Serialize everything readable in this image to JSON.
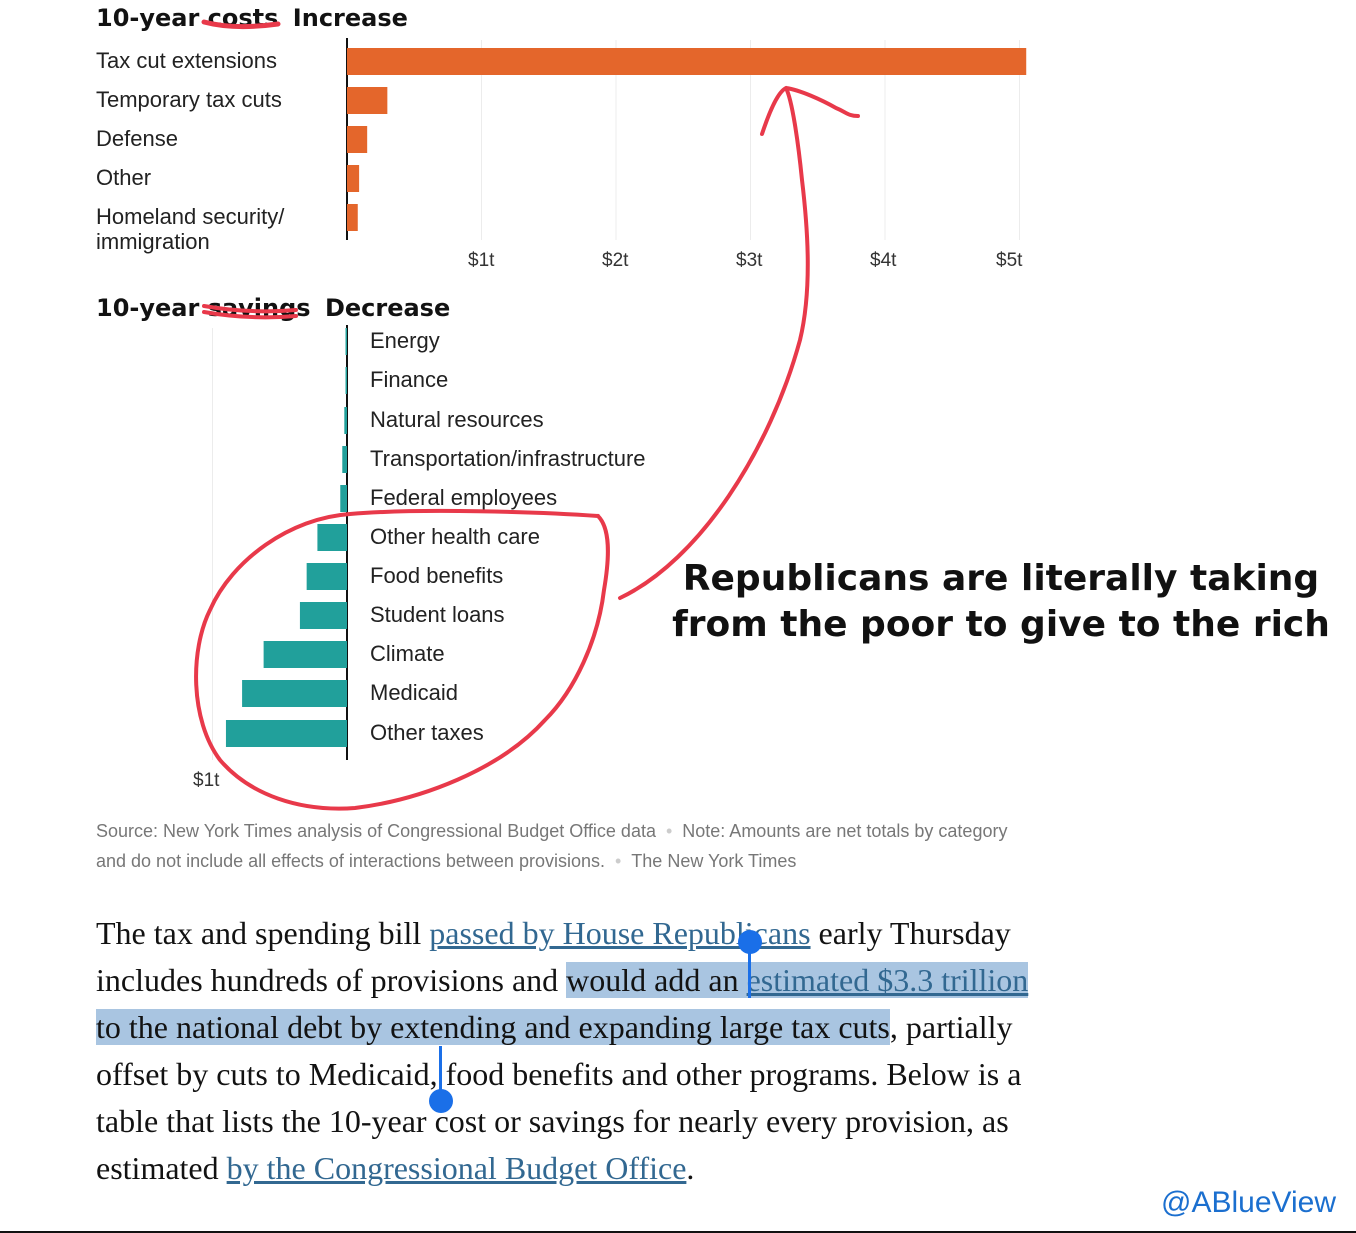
{
  "chart_data": [
    {
      "type": "bar",
      "orientation": "horizontal",
      "title": "10-year costs Increase",
      "title_struck": "costs",
      "title_annotation": "Increase",
      "categories": [
        "Tax cut extensions",
        "Temporary tax cuts",
        "Defense",
        "Other",
        "Homeland security/ immigration"
      ],
      "values": [
        5.05,
        0.3,
        0.15,
        0.09,
        0.08
      ],
      "unit": "trillions of dollars",
      "ticks": [
        "$1t",
        "$2t",
        "$3t",
        "$4t",
        "$5t"
      ],
      "xlim": [
        0,
        5.1
      ],
      "color": "#e4662b"
    },
    {
      "type": "bar",
      "orientation": "horizontal",
      "title": "10-year savings Decrease",
      "title_struck": "savings",
      "title_annotation": "Decrease",
      "categories": [
        "Energy",
        "Finance",
        "Natural resources",
        "Transportation/infrastructure",
        "Federal employees",
        "Other health care",
        "Food benefits",
        "Student loans",
        "Climate",
        "Medicaid",
        "Other taxes"
      ],
      "values": [
        0.005,
        0.01,
        0.02,
        0.035,
        0.05,
        0.22,
        0.3,
        0.35,
        0.62,
        0.78,
        0.9
      ],
      "unit": "trillions of dollars",
      "ticks": [
        "$1t"
      ],
      "xlim": [
        0,
        1
      ],
      "color": "#21a09b"
    }
  ],
  "heading1": {
    "prefix": "10-year",
    "struck": "costs",
    "annotation": "Increase"
  },
  "heading2": {
    "prefix": "10-year",
    "struck": "savings",
    "annotation": "Decrease"
  },
  "source_note": {
    "source": "Source: New York Times analysis of Congressional Budget Office data",
    "note": "Note: Amounts are net totals by category and do not include all effects of interactions between provisions.",
    "credit": "The New York Times"
  },
  "callout": "Republicans are literally taking from the poor to give to the rich",
  "article": {
    "t1": "The tax and spending bill ",
    "link1": "passed by House Republicans",
    "t2": " early Thursday includes hundreds of provisions and ",
    "hl1": "would add an ",
    "link2": "estimated $3.3 trillion",
    "hl2": " to the national debt by extending and expanding large tax cuts",
    "t3": ", partially offset by cuts to Medicaid, food benefits and other programs. Below is a table that lists the 10-year cost or savings for nearly every provision, as estimated ",
    "link3": "by the Congressional Budget Office",
    "t4": "."
  },
  "handle": "@ABlueView",
  "colors": {
    "cost_bar": "#e4662b",
    "savings_bar": "#21a09b",
    "ink": "#e8394a",
    "link": "#326891",
    "selection": "#a9c5e1",
    "handle": "#1b6fcf"
  }
}
